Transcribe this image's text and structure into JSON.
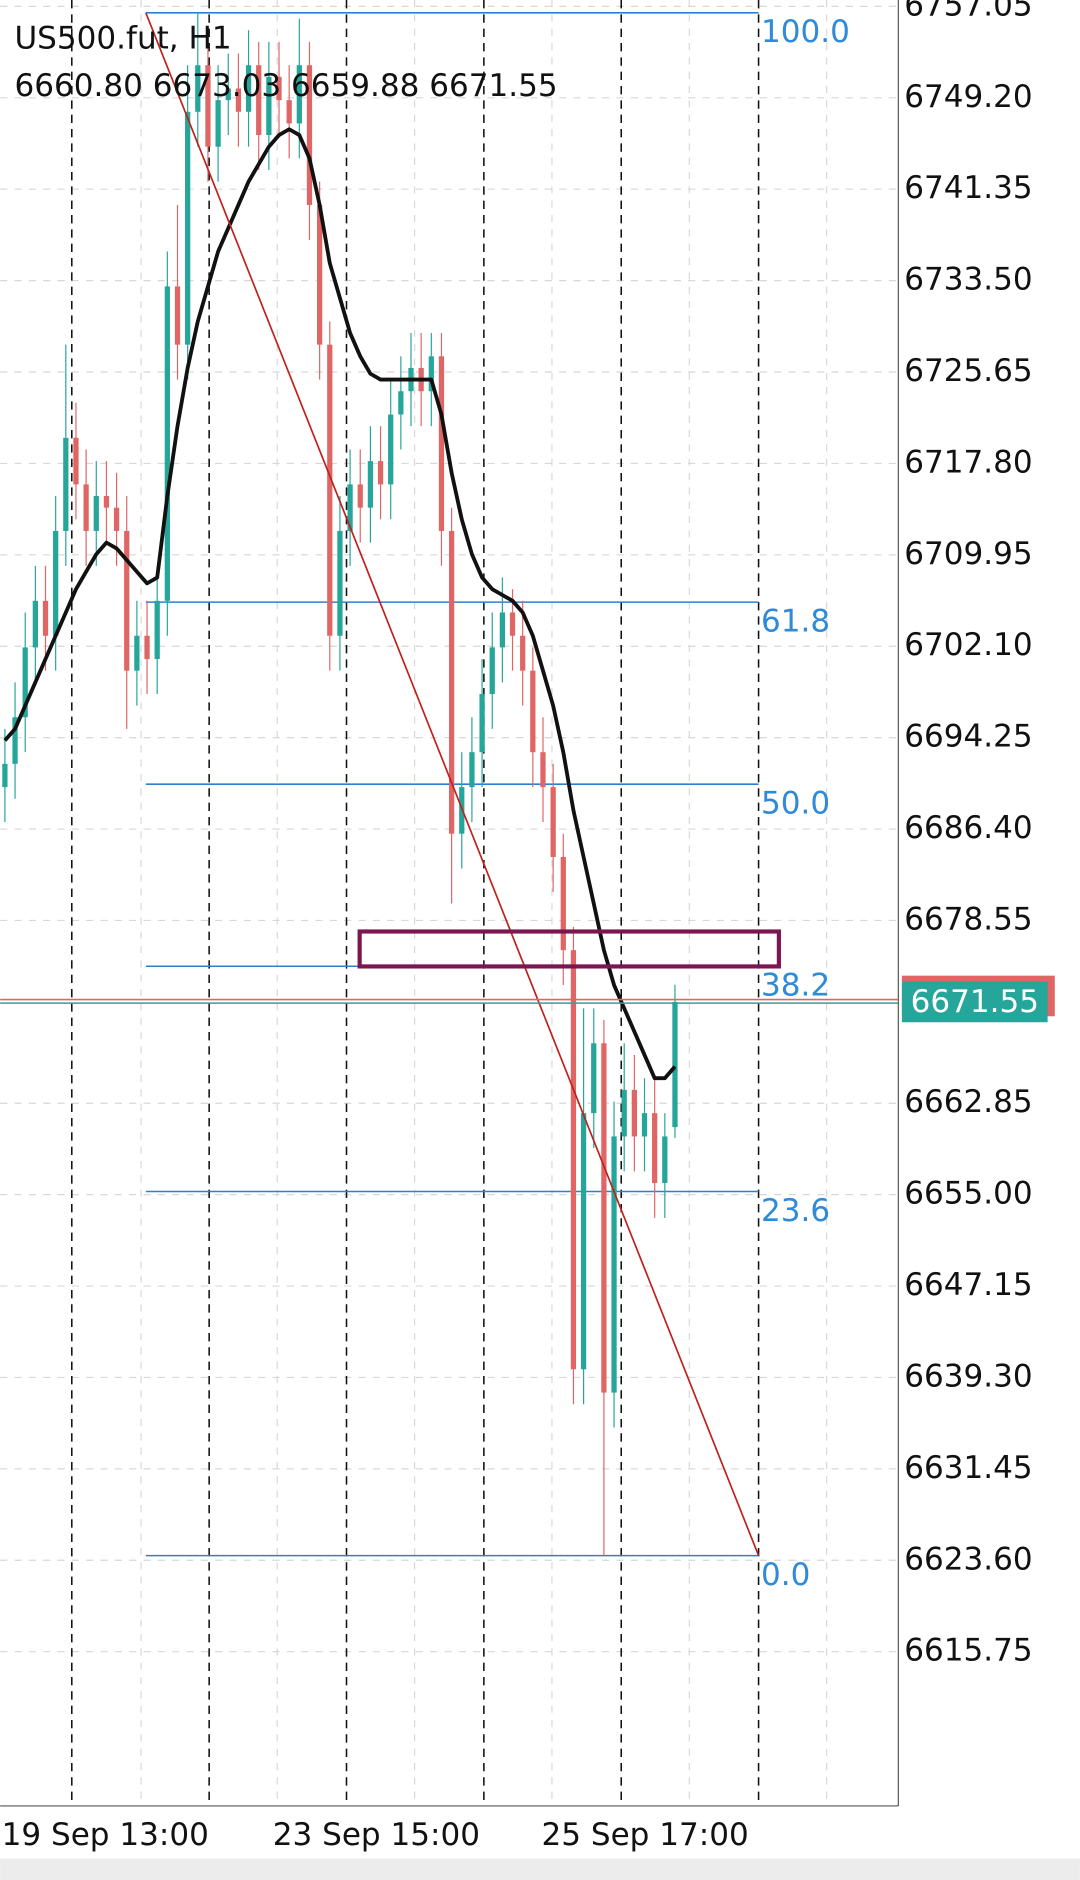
{
  "chart_data": {
    "type": "candlestick",
    "title": "US500.fut, H1",
    "ohlc_label": "6660.80 6673.03 6659.88 6671.55",
    "up_color": "#26a69a",
    "down_color": "#e06666",
    "ma_color": "#111111",
    "open": [
      6690,
      6692,
      6696,
      6702,
      6706,
      6703,
      6712,
      6720,
      6716,
      6712,
      6715,
      6714,
      6712,
      6700,
      6703,
      6701,
      6706,
      6733,
      6728,
      6748,
      6752,
      6745,
      6749,
      6750,
      6748,
      6752,
      6746,
      6751,
      6749,
      6747,
      6752,
      6740,
      6728,
      6703,
      6712,
      6716,
      6714,
      6718,
      6716,
      6722,
      6724,
      6726,
      6724,
      6727,
      6712,
      6686,
      6690,
      6693,
      6698,
      6702,
      6705,
      6703,
      6700,
      6693,
      6690,
      6684,
      6676,
      6640,
      6662,
      6668,
      6638,
      6660,
      6664,
      6660,
      6662,
      6656,
      6660.8
    ],
    "high": [
      6695,
      6699,
      6705,
      6709,
      6709,
      6715,
      6728,
      6723,
      6719,
      6718,
      6718,
      6717,
      6715,
      6706,
      6706,
      6709,
      6736,
      6740,
      6752,
      6756.5,
      6755,
      6752,
      6753,
      6753,
      6755,
      6754,
      6754,
      6754,
      6752,
      6756,
      6754,
      6742,
      6730,
      6715,
      6719,
      6719,
      6721,
      6721,
      6725,
      6727,
      6729,
      6729,
      6729,
      6729,
      6714,
      6693,
      6696,
      6701,
      6705,
      6708,
      6707,
      6706,
      6702,
      6696,
      6692,
      6686,
      6678,
      6671,
      6671,
      6670,
      6663,
      6668,
      6667,
      6665,
      6665,
      6662,
      6673.03
    ],
    "low": [
      6687,
      6689,
      6693,
      6699,
      6700,
      6700,
      6709,
      6713,
      6709,
      6709,
      6711,
      6709,
      6695,
      6697,
      6698,
      6698,
      6703,
      6725,
      6725,
      6745,
      6742,
      6742,
      6746,
      6745,
      6745,
      6743,
      6743,
      6746,
      6744,
      6744,
      6737,
      6725,
      6700,
      6700,
      6709,
      6711,
      6711,
      6713,
      6713,
      6719,
      6721,
      6721,
      6721,
      6709,
      6680,
      6683,
      6687,
      6690,
      6695,
      6699,
      6700,
      6697,
      6690,
      6687,
      6681,
      6673,
      6637,
      6637,
      6659,
      6624,
      6635,
      6657,
      6657,
      6657,
      6653,
      6653,
      6659.88
    ],
    "close": [
      6692,
      6696,
      6702,
      6706,
      6703,
      6712,
      6720,
      6716,
      6712,
      6715,
      6714,
      6712,
      6700,
      6703,
      6701,
      6706,
      6733,
      6728,
      6748,
      6752,
      6745,
      6749,
      6750,
      6748,
      6752,
      6746,
      6751,
      6749,
      6747,
      6752,
      6740,
      6728,
      6703,
      6712,
      6716,
      6714,
      6718,
      6716,
      6722,
      6724,
      6726,
      6724,
      6727,
      6712,
      6686,
      6690,
      6693,
      6698,
      6702,
      6705,
      6703,
      6700,
      6693,
      6690,
      6684,
      6676,
      6640,
      6662,
      6668,
      6638,
      6660,
      6664,
      6660,
      6662,
      6656,
      6660,
      6671.55
    ],
    "ma": [
      6694,
      6695,
      6697,
      6699,
      6701,
      6703,
      6705,
      6707,
      6708.5,
      6710,
      6711,
      6710.5,
      6709.5,
      6708.5,
      6707.5,
      6708,
      6715,
      6721,
      6726,
      6730,
      6733,
      6736,
      6738,
      6740,
      6742,
      6743.5,
      6745,
      6746,
      6746.5,
      6746,
      6744,
      6740,
      6735,
      6732,
      6729,
      6727,
      6725.5,
      6725,
      6725,
      6725,
      6725,
      6725,
      6725,
      6722,
      6717,
      6713,
      6710,
      6708,
      6707,
      6706.5,
      6706,
      6705,
      6703,
      6700,
      6697,
      6693,
      6688,
      6684,
      6680,
      6676,
      6673,
      6671,
      6669,
      6667,
      6665,
      6665,
      6666
    ],
    "ylim": [
      6757.6,
      6602.5
    ],
    "yticks": [
      6757.05,
      {
        "value": 6749.2,
        "label": "6749.20"
      },
      6741.35,
      {
        "value": 6733.5,
        "label": "6733.50"
      },
      6725.65,
      {
        "value": 6717.8,
        "label": "6717.80"
      },
      6709.95,
      {
        "value": 6702.1,
        "label": "6702.10"
      },
      6694.25,
      {
        "value": 6686.4,
        "label": "6686.40"
      },
      6678.55,
      6662.85,
      {
        "value": 6655,
        "label": "6655.00"
      },
      6647.15,
      {
        "value": 6639.3,
        "label": "6639.30"
      },
      6631.45,
      {
        "value": 6623.6,
        "label": "6623.60"
      },
      6615.75
    ],
    "xtick_labels": [
      "19 Sep 13:00",
      "23 Sep 15:00",
      "25 Sep 17:00"
    ],
    "fib_high": 6756.5,
    "fib_low": 6624,
    "fib_levels": [
      {
        "value": 100,
        "label": "100.0"
      },
      {
        "value": 61.8,
        "label": "61.8"
      },
      {
        "value": 50,
        "label": "50.0"
      },
      {
        "value": 38.2,
        "label": "38.2"
      },
      {
        "value": 23.6,
        "label": "23.6"
      },
      {
        "value": 0,
        "label": "0.0"
      }
    ],
    "zone": [
      6677.6,
      6674.6
    ],
    "zone_color": "#7b1650",
    "trendline": [
      6756.5,
      6624
    ],
    "trendline_color": "#c0201a",
    "fib_color": "#2f7fd0",
    "grid": true
  }
}
